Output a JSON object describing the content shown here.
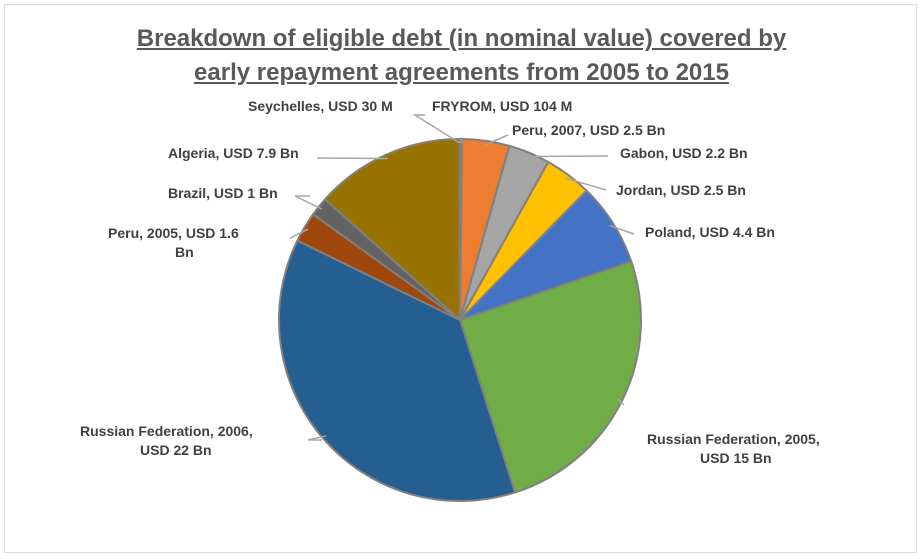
{
  "chart_data": {
    "type": "pie",
    "title_lines": [
      "Breakdown of eligible debt (in nominal value) covered by",
      "early repayment agreements from 2005 to 2015"
    ],
    "slices": [
      {
        "label_lines": [
          "FRYROM, USD 104 M"
        ],
        "value": 0.104,
        "color": "#5b9bd5"
      },
      {
        "label_lines": [
          "Peru, 2007, USD 2.5 Bn"
        ],
        "value": 2.5,
        "color": "#ed7d31"
      },
      {
        "label_lines": [
          "Gabon, USD 2.2 Bn"
        ],
        "value": 2.2,
        "color": "#a5a5a5"
      },
      {
        "label_lines": [
          "Jordan, USD 2.5 Bn"
        ],
        "value": 2.5,
        "color": "#ffc000"
      },
      {
        "label_lines": [
          "Poland, USD 4.4 Bn"
        ],
        "value": 4.4,
        "color": "#4472c4"
      },
      {
        "label_lines": [
          "Russian Federation, 2005,",
          "USD 15 Bn"
        ],
        "value": 15,
        "color": "#70ad47"
      },
      {
        "label_lines": [
          "Russian Federation, 2006,",
          "USD 22 Bn"
        ],
        "value": 22,
        "color": "#255e91"
      },
      {
        "label_lines": [
          "Peru, 2005, USD 1.6",
          "Bn"
        ],
        "value": 1.6,
        "color": "#9e480e"
      },
      {
        "label_lines": [
          "Brazil, USD 1 Bn"
        ],
        "value": 1.0,
        "color": "#636363"
      },
      {
        "label_lines": [
          "Algeria, USD 7.9 Bn"
        ],
        "value": 7.9,
        "color": "#997300"
      },
      {
        "label_lines": [
          "Seychelles, USD 30 M"
        ],
        "value": 0.03,
        "color": "#264478"
      }
    ]
  }
}
